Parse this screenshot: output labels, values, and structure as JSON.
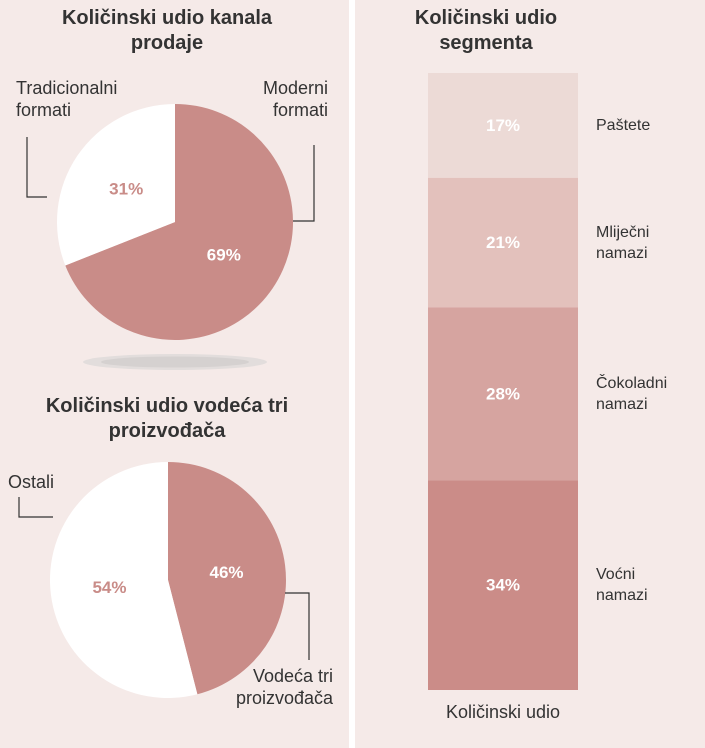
{
  "colors": {
    "panel_background": "#f5eae8",
    "divider": "#ffffff",
    "text": "#333333"
  },
  "chart_data": [
    {
      "type": "pie",
      "title": "Količinski udio kanala prodaje",
      "slices": [
        {
          "label": "Moderni formati",
          "value": 69,
          "value_label": "69%",
          "color": "#c98c88",
          "value_label_color": "#ffffff"
        },
        {
          "label": "Tradicionalni formati",
          "value": 31,
          "value_label": "31%",
          "color": "#ffffff",
          "value_label_color": "#c98c88"
        }
      ]
    },
    {
      "type": "pie",
      "title": "Količinski udio vodeća tri proizvođača",
      "slices": [
        {
          "label": "Vodeća tri proizvođača",
          "value": 46,
          "value_label": "46%",
          "color": "#c98c88",
          "value_label_color": "#ffffff"
        },
        {
          "label": "Ostali",
          "value": 54,
          "value_label": "54%",
          "color": "#ffffff",
          "value_label_color": "#c98c88"
        }
      ]
    },
    {
      "type": "bar",
      "stacked": true,
      "title": "Količinski udio segmenta",
      "categories": [
        "Količinski udio"
      ],
      "ylim": [
        0,
        100
      ],
      "grid": false,
      "legend": "right",
      "value_label_color": "#ffffff",
      "series": [
        {
          "name": "Paštete",
          "values": [
            17
          ],
          "value_labels": [
            "17%"
          ],
          "color": "#ecdad6"
        },
        {
          "name": "Mliječni namazi",
          "values": [
            21
          ],
          "value_labels": [
            "21%"
          ],
          "color": "#e3c1bc"
        },
        {
          "name": "Čokoladni namazi",
          "values": [
            28
          ],
          "value_labels": [
            "28%"
          ],
          "color": "#d6a4a0"
        },
        {
          "name": "Voćni namazi",
          "values": [
            34
          ],
          "value_labels": [
            "34%"
          ],
          "color": "#cb8c88"
        }
      ]
    }
  ]
}
